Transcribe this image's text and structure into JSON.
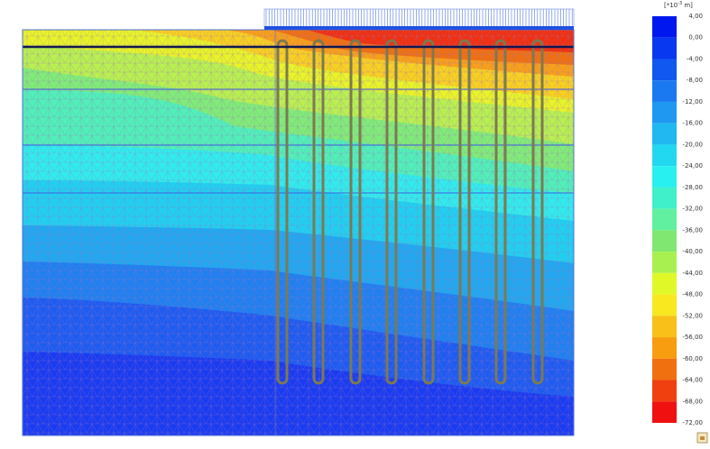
{
  "legend": {
    "unit": {
      "base": "[*10",
      "exponent": "-3",
      "suffix": " m]"
    },
    "labels": [
      "4,00",
      "0,00",
      "-4,00",
      "-8,00",
      "-12,00",
      "-16,00",
      "-20,00",
      "-24,00",
      "-28,00",
      "-32,00",
      "-36,00",
      "-40,00",
      "-44,00",
      "-48,00",
      "-52,00",
      "-56,00",
      "-60,00",
      "-64,00",
      "-68,00",
      "-72,00"
    ],
    "colors": [
      "#0018f0",
      "#0838f0",
      "#1058f0",
      "#1a78f0",
      "#1e98f0",
      "#20b8f0",
      "#22d8f0",
      "#28f0f0",
      "#40f0c8",
      "#60f0a0",
      "#80e870",
      "#a8f050",
      "#e0f828",
      "#f8e820",
      "#f8c018",
      "#f89c10",
      "#f07010",
      "#f04010",
      "#f01010"
    ]
  }
}
